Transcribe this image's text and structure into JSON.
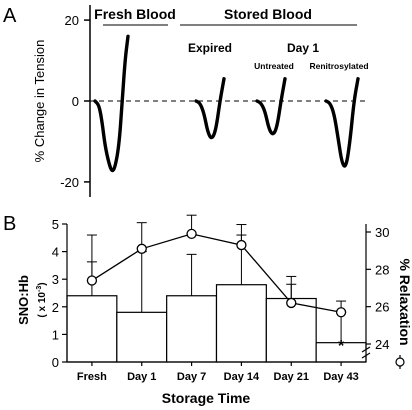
{
  "chart_data": [
    {
      "panel": "A",
      "type": "line",
      "ylabel": "% Change in Tension",
      "yticks": [
        20,
        0,
        -20
      ],
      "ylim": [
        -22,
        22
      ],
      "baseline_style": "dashed",
      "group_labels": {
        "fresh": "Fresh Blood",
        "stored": "Stored Blood"
      },
      "sub_labels": {
        "expired": "Expired",
        "day1": "Day 1",
        "untreated": "Untreated",
        "renitrosylated": "Renitrosylated"
      },
      "series": [
        {
          "name": "Fresh Blood",
          "x": [
            0,
            0.4,
            0.7,
            1.0,
            1.4,
            1.7,
            2.0,
            2.4,
            2.7,
            3.0,
            3.3
          ],
          "y": [
            0,
            -1,
            -5,
            -11,
            -15.5,
            -17.5,
            -16.5,
            -11,
            -1,
            10,
            16
          ]
        },
        {
          "name": "Expired",
          "x": [
            0,
            0.4,
            0.8,
            1.2,
            1.6,
            2.0,
            2.4,
            2.8
          ],
          "y": [
            0,
            -0.5,
            -3,
            -8,
            -9.5,
            -7,
            0,
            5.5
          ]
        },
        {
          "name": "Untreated",
          "x": [
            0,
            0.4,
            0.8,
            1.2,
            1.6,
            2.0,
            2.4,
            2.8
          ],
          "y": [
            0,
            -0.5,
            -2.5,
            -7,
            -8.5,
            -6.5,
            0,
            5.5
          ]
        },
        {
          "name": "Renitrosylated",
          "x": [
            0,
            0.4,
            0.8,
            1.2,
            1.6,
            2.0,
            2.4,
            2.8,
            3.2
          ],
          "y": [
            0,
            -0.5,
            -3,
            -9,
            -15.5,
            -16.5,
            -10,
            0,
            5.5
          ]
        }
      ]
    },
    {
      "panel": "B",
      "type": "bar",
      "categories": [
        "Fresh",
        "Day 1",
        "Day 7",
        "Day 14",
        "Day 21",
        "Day 43"
      ],
      "xlabel": "Storage Time",
      "ylabel": "SNO:Hb",
      "ylabel_unit": "( x 10",
      "ylabel_exp": "-3",
      "ylim": [
        0,
        5
      ],
      "yticks": [
        0,
        1,
        2,
        3,
        4,
        5
      ],
      "bars": {
        "values": [
          2.4,
          1.8,
          2.4,
          2.8,
          2.3,
          0.7
        ],
        "errors": [
          2.2,
          2.2,
          1.5,
          1.8,
          0.8,
          1.1
        ]
      },
      "line": {
        "values": [
          27.4,
          29.1,
          29.9,
          29.3,
          26.2,
          25.7
        ],
        "errors": [
          1.0,
          1.4,
          1.0,
          1.1,
          1.0,
          0.6
        ],
        "marker": "open-circle"
      },
      "y2label": "% Relaxation",
      "y2lim": [
        22,
        30
      ],
      "y2ticks": [
        24,
        26,
        28,
        30
      ],
      "y2_axis_break": true,
      "annotation": {
        "text": "*",
        "category": "Day 43"
      }
    }
  ],
  "panel_labels": {
    "a": "A",
    "b": "B"
  }
}
